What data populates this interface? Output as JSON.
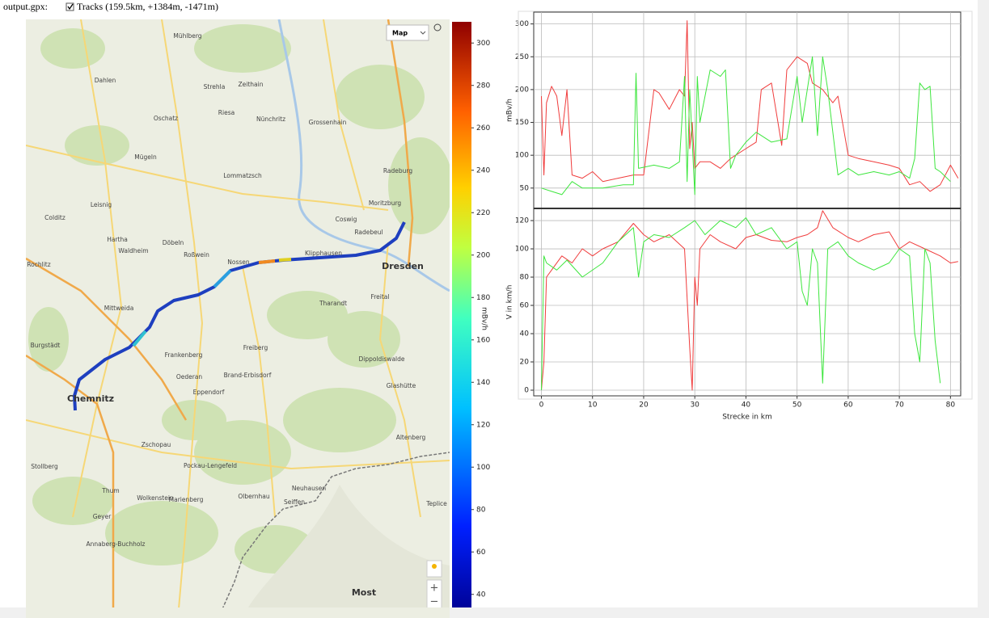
{
  "header": {
    "file": "output.gpx:",
    "track_label": "Tracks (159.5km, +1384m, -1471m)"
  },
  "map": {
    "type_select": "Map",
    "zoom_in": "+",
    "zoom_out": "−",
    "labels": [
      "Mühlberg",
      "Riesa",
      "Zeithain",
      "Strehla",
      "Oschatz",
      "Grossenhain",
      "Nünchritz",
      "Radeburg",
      "Coswig",
      "Radebeul",
      "Dresden",
      "Freital",
      "Tharandt",
      "Klipphausen",
      "Nossen",
      "Roßwein",
      "Döbeln",
      "Hartha",
      "Waldheim",
      "Leisnig",
      "Colditz",
      "Mittweida",
      "Rochlitz",
      "Chemnitz",
      "Frankenberg",
      "Oederan",
      "Freiberg",
      "Brand-Erbisdorf",
      "Zschopau",
      "Marienberg",
      "Annaberg-Buchholz",
      "Olbernhau",
      "Seiffen",
      "Altenberg",
      "Dippoldiswalde",
      "Glashütte",
      "Most",
      "Teplice",
      "Dahlen",
      "Mügeln",
      "Lommatzsch",
      "Moritzburg",
      "Burgstädt",
      "Eppendorf",
      "Stollberg",
      "Thum",
      "Geyer",
      "Wolkenstein",
      "Pockau-Lengefeld",
      "Neuhausen"
    ]
  },
  "chart_data": [
    {
      "type": "colorbar",
      "ylabel": "mBv/h",
      "ylim": [
        30,
        310
      ],
      "yticks": [
        40,
        60,
        80,
        100,
        120,
        140,
        160,
        180,
        200,
        220,
        240,
        260,
        280,
        300
      ]
    },
    {
      "type": "line",
      "ylabel": "mBv/h",
      "xlim": [
        -1.5,
        82
      ],
      "ylim": [
        19,
        318
      ],
      "yticks": [
        50,
        100,
        150,
        200,
        250,
        300
      ],
      "grid": true,
      "series": [
        {
          "color": "#f03c3c",
          "x": [
            0,
            0.5,
            1,
            2,
            3,
            4,
            5,
            6,
            8,
            10,
            12,
            15,
            18,
            20,
            22,
            23,
            25,
            27,
            28,
            28.5,
            29,
            29.5,
            30,
            31,
            33,
            35,
            37,
            40,
            42,
            43,
            45,
            47,
            48,
            50,
            52,
            53,
            55,
            57,
            58,
            60,
            62,
            65,
            68,
            70,
            72,
            74,
            76,
            78,
            80,
            81.5
          ],
          "values": [
            190,
            70,
            180,
            205,
            190,
            130,
            200,
            70,
            65,
            75,
            60,
            65,
            70,
            70,
            200,
            195,
            170,
            200,
            190,
            305,
            110,
            150,
            80,
            90,
            90,
            80,
            95,
            110,
            120,
            200,
            210,
            115,
            230,
            250,
            240,
            210,
            200,
            180,
            190,
            100,
            95,
            90,
            85,
            80,
            55,
            60,
            45,
            55,
            85,
            65
          ]
        },
        {
          "color": "#3ee63e",
          "x": [
            0,
            2,
            4,
            6,
            8,
            12,
            16,
            18,
            18.5,
            19,
            22,
            25,
            27,
            28,
            28.5,
            29,
            30,
            30.5,
            31,
            33,
            35,
            36,
            37,
            38,
            40,
            42,
            45,
            48,
            50,
            51,
            53,
            54,
            55,
            56,
            58,
            60,
            62,
            65,
            68,
            70,
            72,
            73,
            74,
            75,
            76,
            77,
            78,
            80
          ],
          "values": [
            50,
            45,
            40,
            60,
            50,
            50,
            55,
            55,
            225,
            80,
            85,
            80,
            90,
            220,
            60,
            200,
            40,
            220,
            150,
            230,
            220,
            230,
            80,
            100,
            120,
            135,
            120,
            125,
            220,
            150,
            250,
            130,
            250,
            200,
            70,
            80,
            70,
            75,
            70,
            75,
            65,
            95,
            210,
            200,
            205,
            80,
            75,
            60
          ]
        }
      ]
    },
    {
      "type": "line",
      "ylabel": "V in km/h",
      "xlabel": "Strecke in km",
      "xlim": [
        -1.5,
        82
      ],
      "ylim": [
        -4,
        128.6
      ],
      "xticks": [
        0,
        10,
        20,
        30,
        40,
        50,
        60,
        70,
        80
      ],
      "yticks": [
        0,
        20,
        40,
        60,
        80,
        100,
        120
      ],
      "grid": true,
      "series": [
        {
          "color": "#f03c3c",
          "x": [
            0,
            0.5,
            1,
            2,
            4,
            6,
            8,
            10,
            12,
            15,
            18,
            20,
            22,
            25,
            28,
            29,
            29.5,
            30,
            30.5,
            31,
            33,
            35,
            38,
            40,
            42,
            45,
            48,
            50,
            52,
            54,
            55,
            57,
            60,
            62,
            65,
            68,
            70,
            72,
            75,
            78,
            80,
            81.5
          ],
          "values": [
            0,
            20,
            80,
            85,
            95,
            90,
            100,
            95,
            100,
            105,
            118,
            110,
            105,
            110,
            100,
            30,
            0,
            80,
            60,
            100,
            110,
            105,
            100,
            108,
            110,
            106,
            105,
            108,
            110,
            115,
            127,
            115,
            108,
            105,
            110,
            112,
            100,
            105,
            100,
            95,
            90,
            91
          ]
        },
        {
          "color": "#3ee63e",
          "x": [
            0,
            0.5,
            1,
            3,
            5,
            8,
            12,
            15,
            18,
            19,
            20,
            22,
            25,
            28,
            30,
            32,
            35,
            38,
            40,
            42,
            45,
            48,
            50,
            51,
            52,
            53,
            54,
            55,
            56,
            58,
            60,
            62,
            65,
            68,
            70,
            72,
            73,
            74,
            75,
            76,
            77,
            78
          ],
          "values": [
            0,
            95,
            90,
            85,
            92,
            80,
            90,
            105,
            115,
            80,
            105,
            110,
            108,
            115,
            120,
            110,
            120,
            115,
            122,
            110,
            115,
            100,
            105,
            70,
            60,
            100,
            90,
            5,
            100,
            105,
            95,
            90,
            85,
            90,
            100,
            95,
            40,
            20,
            100,
            90,
            35,
            5
          ]
        }
      ]
    }
  ]
}
